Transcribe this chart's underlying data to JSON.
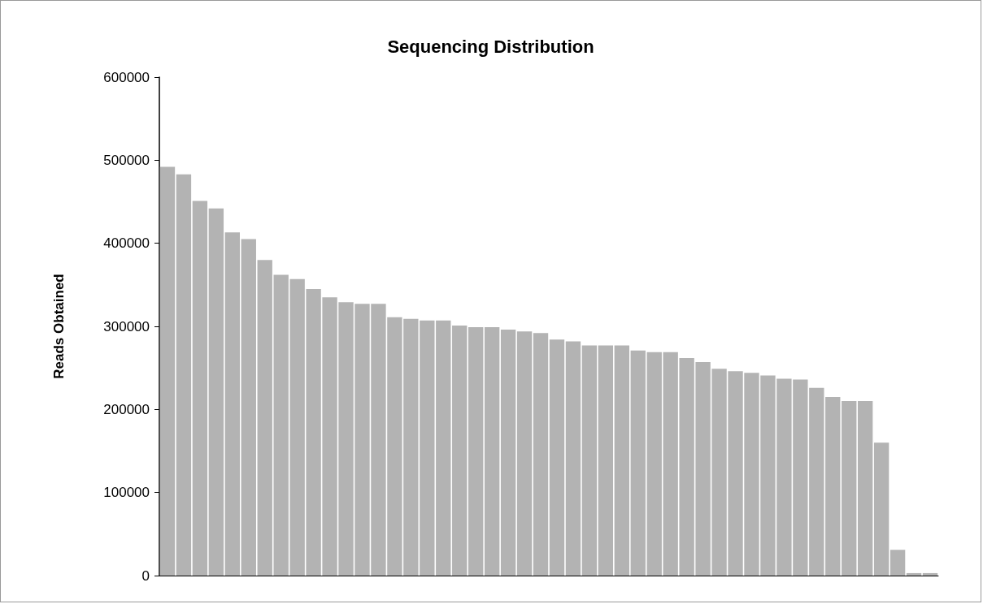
{
  "chart_data": {
    "type": "bar",
    "title": "Sequencing Distribution",
    "ylabel": "Reads Obtained",
    "categories": [
      null,
      null,
      null,
      null,
      null,
      null,
      null,
      null,
      null,
      null,
      null,
      null,
      null,
      null,
      null,
      null,
      null,
      null,
      null,
      null,
      null,
      null,
      null,
      null,
      null,
      null,
      null,
      null,
      null,
      null,
      null,
      null,
      null,
      null,
      null,
      null,
      null,
      null,
      null,
      null,
      null,
      null,
      null,
      null,
      null,
      null,
      null,
      null
    ],
    "values": [
      492000,
      483000,
      451000,
      442000,
      413000,
      405000,
      380000,
      362000,
      357000,
      345000,
      335000,
      329000,
      327000,
      327000,
      311000,
      309000,
      307000,
      307000,
      301000,
      299000,
      299000,
      296000,
      294000,
      292000,
      284000,
      282000,
      277000,
      277000,
      277000,
      271000,
      269000,
      269000,
      262000,
      257000,
      249000,
      246000,
      244000,
      241000,
      237000,
      236000,
      226000,
      215000,
      210000,
      210000,
      160000,
      31000,
      3000,
      3000
    ],
    "color": "#b3b3b3",
    "ylim": [
      0,
      600000
    ],
    "yticks": [
      0,
      100000,
      200000,
      300000,
      400000,
      500000,
      600000
    ],
    "grid": false
  }
}
